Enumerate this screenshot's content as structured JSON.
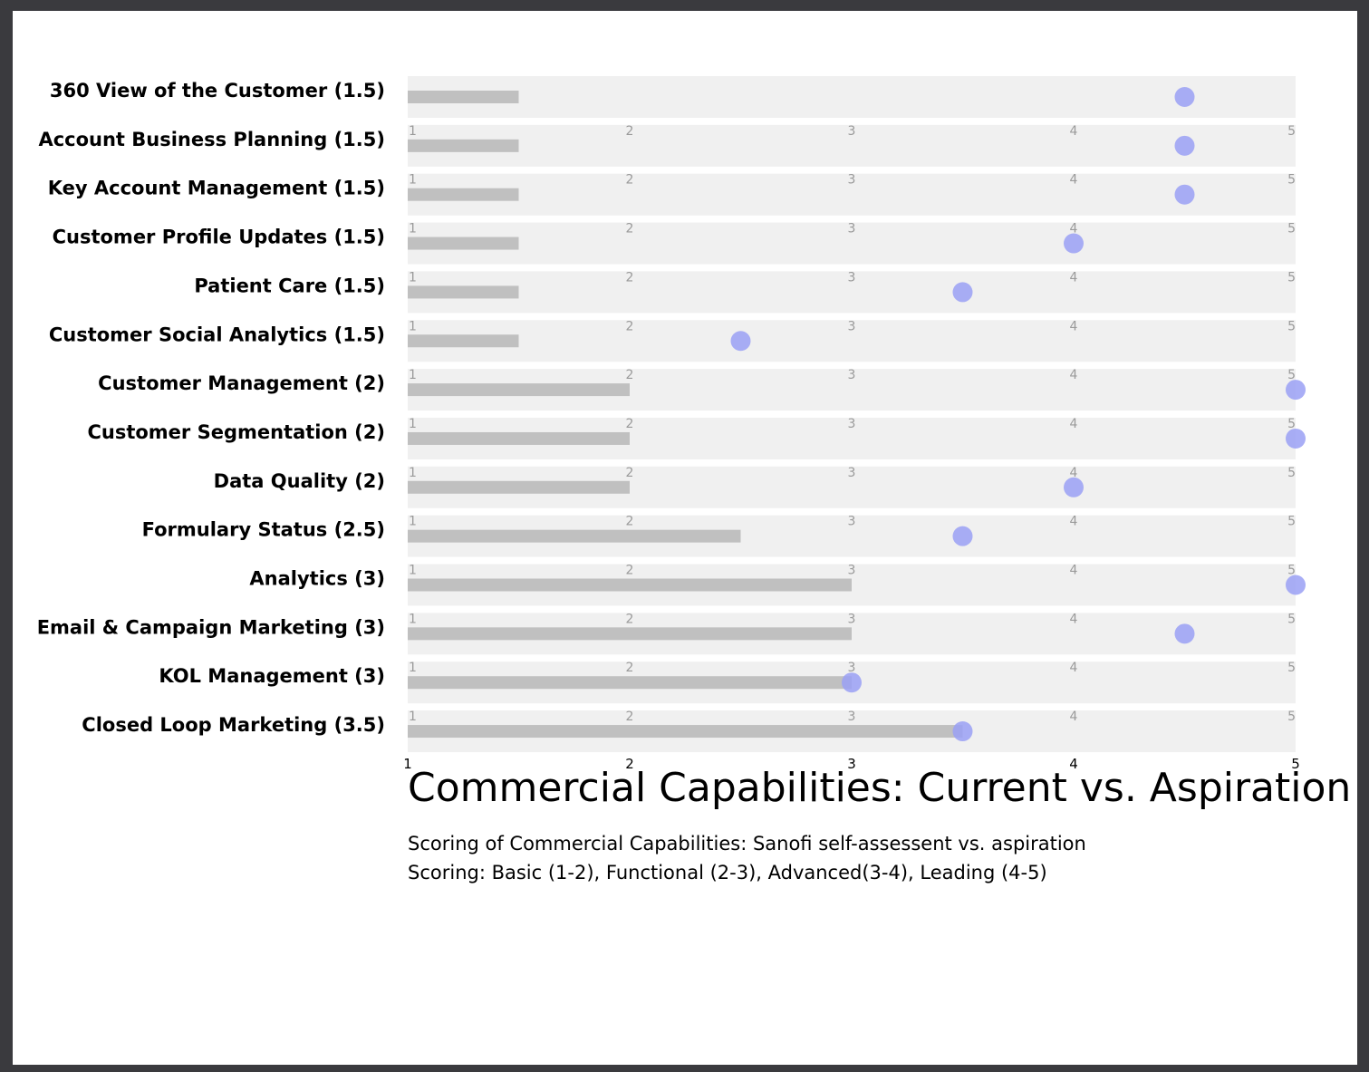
{
  "chart_data": {
    "type": "bar",
    "title": "Commercial Capabilities: Current vs. Aspiration",
    "subtitle_lines": [
      "Scoring of Commercial Capabilities: Sanofi self-assessent vs. aspiration",
      "Scoring: Basic (1-2), Functional (2-3), Advanced(3-4), Leading (4-5)"
    ],
    "orientation": "horizontal",
    "xlim": [
      1,
      5
    ],
    "x_ticks": [
      "1",
      "2",
      "3",
      "4",
      "5"
    ],
    "categories": [
      "360 View of the Customer (1.5)",
      "Account Business Planning (1.5)",
      "Key Account Management (1.5)",
      "Customer Profile Updates (1.5)",
      "Patient Care (1.5)",
      "Customer Social Analytics (1.5)",
      "Customer Management (2)",
      "Customer Segmentation (2)",
      "Data Quality (2)",
      "Formulary Status (2.5)",
      "Analytics (3)",
      "Email & Campaign Marketing (3)",
      "KOL Management (3)",
      "Closed Loop Marketing (3.5)"
    ],
    "series": [
      {
        "values": [
          1.5,
          1.5,
          1.5,
          1.5,
          1.5,
          1.5,
          2,
          2,
          2,
          2.5,
          3,
          3,
          3,
          3.5
        ]
      },
      {
        "values": [
          4.5,
          4.5,
          4.5,
          4,
          3.5,
          2.5,
          5,
          5,
          4,
          3.5,
          5,
          4.5,
          3,
          3.5
        ]
      }
    ],
    "grid": false,
    "colors": {
      "current_bar": "#c0c0c0",
      "aspiration_dot": "#9aa0f4",
      "row_band": "#f0f0f0"
    }
  }
}
